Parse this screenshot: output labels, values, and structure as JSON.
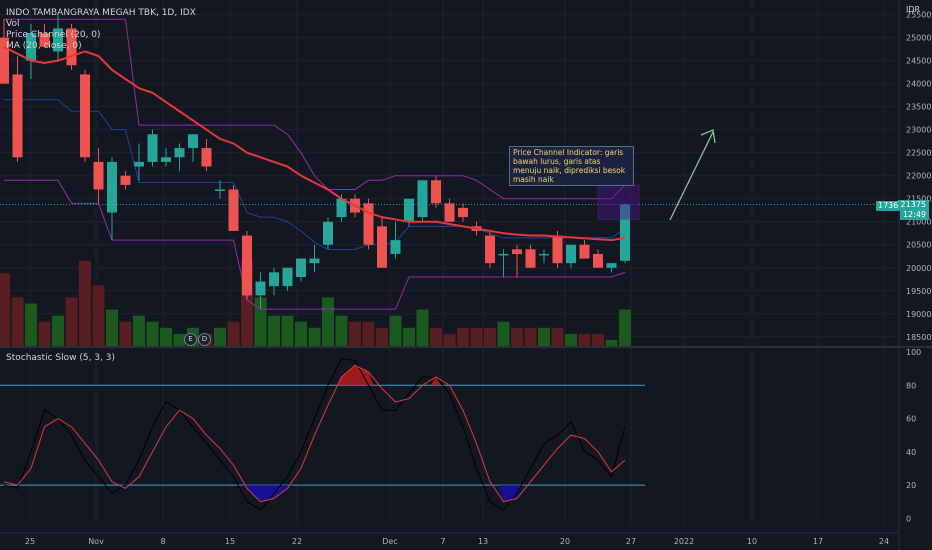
{
  "header": {
    "symbol": "INDO TAMBANGRAYA MEGAH TBK, 1D, IDX",
    "vol_label": "Vol",
    "price_channel_label": "Price Channel (20, 0)",
    "ma_label": "MA (20, close, 0)",
    "stoch_label": "Stochastic Slow (5, 3, 3)",
    "currency": "IDR"
  },
  "annotation": {
    "text": "Price Channel Indicator: garis bawah lurus, garis atas menuju naik, diprediksi besok masih naik"
  },
  "price_labels": {
    "left_tag": "17365",
    "price": "21375",
    "time": "12:49"
  },
  "events": [
    "E",
    "D"
  ],
  "colors": {
    "up": "#26a69a",
    "down": "#ef5350",
    "ma": "#e53935",
    "channel": "#9c27b0",
    "stoch_k": "#000000",
    "stoch_d": "#e53935",
    "band": "#26a69a",
    "os_fill": "#1a0fa8",
    "ob_fill": "#b71c1c"
  },
  "chart_data": {
    "type": "candlestick",
    "title": "INDO TAMBANGRAYA MEGAH TBK, 1D, IDX",
    "price_axis": {
      "ticks": [
        18500,
        19000,
        19500,
        20000,
        20500,
        21000,
        21500,
        22000,
        22500,
        23000,
        23500,
        24000,
        24500,
        25000,
        25500
      ],
      "ylim": [
        18300,
        25600
      ]
    },
    "stoch_axis": {
      "ticks": [
        0,
        20,
        40,
        60,
        80,
        100
      ],
      "ylim": [
        -4,
        100
      ],
      "bands": [
        20,
        80
      ]
    },
    "x_ticks": [
      "25",
      "Nov",
      "8",
      "15",
      "22",
      "Dec",
      "7",
      "13",
      "20",
      "27",
      "2022",
      "10",
      "17",
      "24"
    ],
    "candles": [
      {
        "o": 25000,
        "h": 25400,
        "l": 24000,
        "c": 24000
      },
      {
        "o": 24200,
        "h": 24600,
        "l": 22300,
        "c": 22400
      },
      {
        "o": 24500,
        "h": 25300,
        "l": 24100,
        "c": 25100
      },
      {
        "o": 25100,
        "h": 25300,
        "l": 24800,
        "c": 24800
      },
      {
        "o": 24700,
        "h": 25500,
        "l": 24500,
        "c": 25200
      },
      {
        "o": 25200,
        "h": 25300,
        "l": 24300,
        "c": 24400
      },
      {
        "o": 24200,
        "h": 24300,
        "l": 22300,
        "c": 22400
      },
      {
        "o": 22300,
        "h": 22600,
        "l": 21400,
        "c": 21700
      },
      {
        "o": 21200,
        "h": 22400,
        "l": 20600,
        "c": 22300
      },
      {
        "o": 22000,
        "h": 22100,
        "l": 21700,
        "c": 21800
      },
      {
        "o": 22200,
        "h": 22700,
        "l": 21900,
        "c": 22300
      },
      {
        "o": 22300,
        "h": 23000,
        "l": 22200,
        "c": 22900
      },
      {
        "o": 22300,
        "h": 22600,
        "l": 22200,
        "c": 22400
      },
      {
        "o": 22400,
        "h": 22700,
        "l": 22100,
        "c": 22600
      },
      {
        "o": 22600,
        "h": 22900,
        "l": 22300,
        "c": 22900
      },
      {
        "o": 22600,
        "h": 22800,
        "l": 22100,
        "c": 22200
      },
      {
        "o": 21700,
        "h": 21900,
        "l": 21500,
        "c": 21700
      },
      {
        "o": 21700,
        "h": 21800,
        "l": 20800,
        "c": 20800
      },
      {
        "o": 20700,
        "h": 20800,
        "l": 19300,
        "c": 19400
      },
      {
        "o": 19400,
        "h": 19900,
        "l": 19100,
        "c": 19700
      },
      {
        "o": 19600,
        "h": 20000,
        "l": 19400,
        "c": 19900
      },
      {
        "o": 19600,
        "h": 20000,
        "l": 19500,
        "c": 20000
      },
      {
        "o": 19800,
        "h": 20200,
        "l": 19700,
        "c": 20200
      },
      {
        "o": 20100,
        "h": 20500,
        "l": 19900,
        "c": 20200
      },
      {
        "o": 20500,
        "h": 21100,
        "l": 20400,
        "c": 21000
      },
      {
        "o": 21100,
        "h": 21600,
        "l": 21000,
        "c": 21500
      },
      {
        "o": 21500,
        "h": 21600,
        "l": 21100,
        "c": 21200
      },
      {
        "o": 21400,
        "h": 21500,
        "l": 20400,
        "c": 20500
      },
      {
        "o": 20900,
        "h": 21100,
        "l": 20000,
        "c": 20000
      },
      {
        "o": 20300,
        "h": 21000,
        "l": 20200,
        "c": 20600
      },
      {
        "o": 21000,
        "h": 21500,
        "l": 20900,
        "c": 21500
      },
      {
        "o": 21100,
        "h": 21900,
        "l": 21000,
        "c": 21900
      },
      {
        "o": 21900,
        "h": 22000,
        "l": 21300,
        "c": 21400
      },
      {
        "o": 21400,
        "h": 21500,
        "l": 21000,
        "c": 21000
      },
      {
        "o": 21300,
        "h": 21400,
        "l": 21000,
        "c": 21100
      },
      {
        "o": 20900,
        "h": 21000,
        "l": 20700,
        "c": 20800
      },
      {
        "o": 20700,
        "h": 20800,
        "l": 20000,
        "c": 20100
      },
      {
        "o": 20300,
        "h": 20400,
        "l": 19800,
        "c": 20300
      },
      {
        "o": 20400,
        "h": 20500,
        "l": 19800,
        "c": 20300
      },
      {
        "o": 20400,
        "h": 20500,
        "l": 20000,
        "c": 20000
      },
      {
        "o": 20300,
        "h": 20400,
        "l": 20100,
        "c": 20300
      },
      {
        "o": 20700,
        "h": 20800,
        "l": 20000,
        "c": 20100
      },
      {
        "o": 20100,
        "h": 20500,
        "l": 20000,
        "c": 20500
      },
      {
        "o": 20500,
        "h": 20600,
        "l": 20200,
        "c": 20200
      },
      {
        "o": 20300,
        "h": 20400,
        "l": 20000,
        "c": 20000
      },
      {
        "o": 20000,
        "h": 20100,
        "l": 19900,
        "c": 20100
      },
      {
        "o": 20150,
        "h": 21400,
        "l": 20100,
        "c": 21375
      }
    ],
    "ma20": [
      24800,
      24650,
      24500,
      24450,
      24500,
      24600,
      24700,
      24600,
      24300,
      24100,
      23900,
      23800,
      23600,
      23400,
      23200,
      23000,
      22800,
      22700,
      22500,
      22400,
      22300,
      22200,
      22000,
      21850,
      21700,
      21500,
      21350,
      21200,
      21100,
      21050,
      21000,
      21000,
      21000,
      20950,
      20900,
      20850,
      20800,
      20750,
      20720,
      20700,
      20700,
      20680,
      20660,
      20640,
      20620,
      20600,
      20650
    ],
    "channel_upper": [
      25400,
      25400,
      25400,
      25400,
      25400,
      25400,
      25400,
      25400,
      25400,
      25400,
      23100,
      23100,
      23100,
      23100,
      23100,
      23100,
      23100,
      23100,
      23100,
      23100,
      23100,
      22900,
      22500,
      22000,
      21700,
      21700,
      21700,
      21900,
      21900,
      22000,
      22000,
      22000,
      22000,
      22000,
      22000,
      21900,
      21700,
      21500,
      21500,
      21500,
      21500,
      21500,
      21500,
      21500,
      21500,
      21500,
      21800
    ],
    "channel_lower": [
      21900,
      21900,
      21900,
      21900,
      21900,
      21400,
      21400,
      21400,
      20600,
      20600,
      20600,
      20600,
      20600,
      20600,
      20600,
      20600,
      20600,
      20600,
      19300,
      19100,
      19100,
      19100,
      19100,
      19100,
      19100,
      19100,
      19100,
      19100,
      19100,
      19100,
      19800,
      19800,
      19800,
      19800,
      19800,
      19800,
      19800,
      19800,
      19800,
      19800,
      19800,
      19800,
      19800,
      19800,
      19800,
      19800,
      19900
    ],
    "volume": [
      1.2,
      0.8,
      0.7,
      0.4,
      0.5,
      0.8,
      1.4,
      1.0,
      0.6,
      0.4,
      0.5,
      0.4,
      0.3,
      0.2,
      0.3,
      0.2,
      0.3,
      0.4,
      1.4,
      0.8,
      0.5,
      0.5,
      0.4,
      0.3,
      0.8,
      0.5,
      0.4,
      0.4,
      0.3,
      0.5,
      0.3,
      0.6,
      0.3,
      0.2,
      0.3,
      0.3,
      0.3,
      0.4,
      0.3,
      0.3,
      0.3,
      0.3,
      0.2,
      0.2,
      0.2,
      0.1,
      0.6
    ],
    "stoch_k": [
      20,
      18,
      40,
      65,
      60,
      50,
      35,
      25,
      15,
      20,
      35,
      55,
      70,
      65,
      55,
      45,
      35,
      25,
      10,
      5,
      15,
      25,
      40,
      60,
      80,
      96,
      95,
      80,
      65,
      65,
      75,
      85,
      85,
      75,
      55,
      30,
      10,
      5,
      15,
      30,
      45,
      50,
      58,
      40,
      35,
      25,
      55
    ],
    "stoch_d": [
      22,
      20,
      30,
      55,
      60,
      55,
      45,
      35,
      22,
      18,
      25,
      40,
      55,
      65,
      60,
      50,
      42,
      32,
      18,
      10,
      12,
      18,
      30,
      50,
      68,
      85,
      92,
      88,
      78,
      70,
      72,
      80,
      85,
      80,
      65,
      45,
      22,
      10,
      12,
      22,
      32,
      42,
      50,
      48,
      40,
      28,
      35
    ]
  }
}
